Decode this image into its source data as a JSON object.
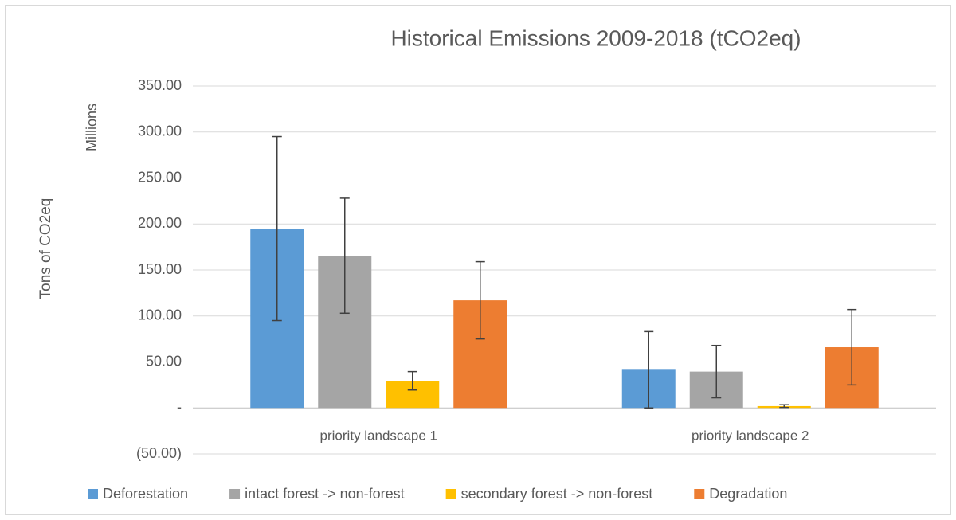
{
  "chart_data": {
    "type": "bar",
    "title": "Historical Emissions 2009-2018 (tCO2eq)",
    "y_label": "Tons of CO2eq",
    "y_unit_label": "Millions",
    "categories": [
      "priority landscape 1",
      "priority landscape 2"
    ],
    "series": [
      {
        "name": "Deforestation",
        "color": "#5b9bd5",
        "values": [
          195,
          41.5
        ],
        "errors": [
          100,
          41.5
        ]
      },
      {
        "name": "intact forest -> non-forest",
        "color": "#a5a5a5",
        "values": [
          165.5,
          39.5
        ],
        "errors": [
          62.5,
          28.5
        ]
      },
      {
        "name": "secondary forest -> non-forest",
        "color": "#ffc000",
        "values": [
          29.5,
          2
        ],
        "errors": [
          10,
          1.5
        ]
      },
      {
        "name": "Degradation",
        "color": "#ed7d31",
        "values": [
          117,
          66
        ],
        "errors": [
          42,
          41
        ]
      }
    ],
    "ylim": [
      -50,
      350
    ],
    "yticks": [
      {
        "value": -50,
        "label": "(50.00)"
      },
      {
        "value": 0,
        "label": "-"
      },
      {
        "value": 50,
        "label": "50.00"
      },
      {
        "value": 100,
        "label": "100.00"
      },
      {
        "value": 150,
        "label": "150.00"
      },
      {
        "value": 200,
        "label": "200.00"
      },
      {
        "value": 250,
        "label": "250.00"
      },
      {
        "value": 300,
        "label": "300.00"
      },
      {
        "value": 350,
        "label": "350.00"
      }
    ],
    "grid": true,
    "legend": "bottom"
  }
}
